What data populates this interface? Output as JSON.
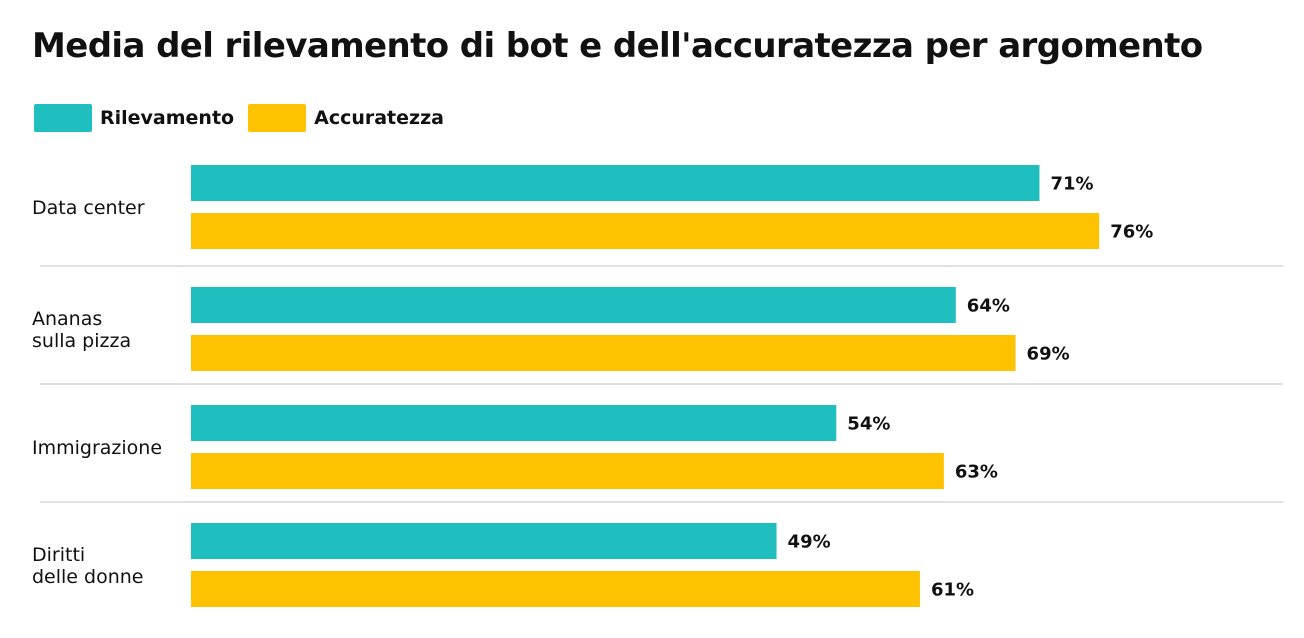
{
  "title": "Media del rilevamento di bot e dell'accuratezza per argomento",
  "legend": [
    {
      "label": "Rilevamento",
      "color": "#1FBFBF"
    },
    {
      "label": "Accuratezza",
      "color": "#FFC200"
    }
  ],
  "chart_data": {
    "type": "bar",
    "orientation": "horizontal",
    "title": "Media del rilevamento di bot e dell'accuratezza per argomento",
    "categories": [
      [
        "Data center"
      ],
      [
        "Ananas",
        "sulla pizza"
      ],
      [
        "Immigrazione"
      ],
      [
        "Diritti",
        "delle donne"
      ]
    ],
    "series": [
      {
        "name": "Rilevamento",
        "color": "#1FBFBF",
        "values": [
          71,
          64,
          54,
          49
        ],
        "labels": [
          "71%",
          "64%",
          "54%",
          "49%"
        ]
      },
      {
        "name": "Accuratezza",
        "color": "#FFC200",
        "values": [
          76,
          69,
          63,
          61
        ],
        "labels": [
          "76%",
          "69%",
          "63%",
          "61%"
        ]
      }
    ],
    "xlim": [
      0,
      100
    ],
    "value_suffix": "%",
    "legend_position": "top-left",
    "grid": false,
    "separators": true
  }
}
